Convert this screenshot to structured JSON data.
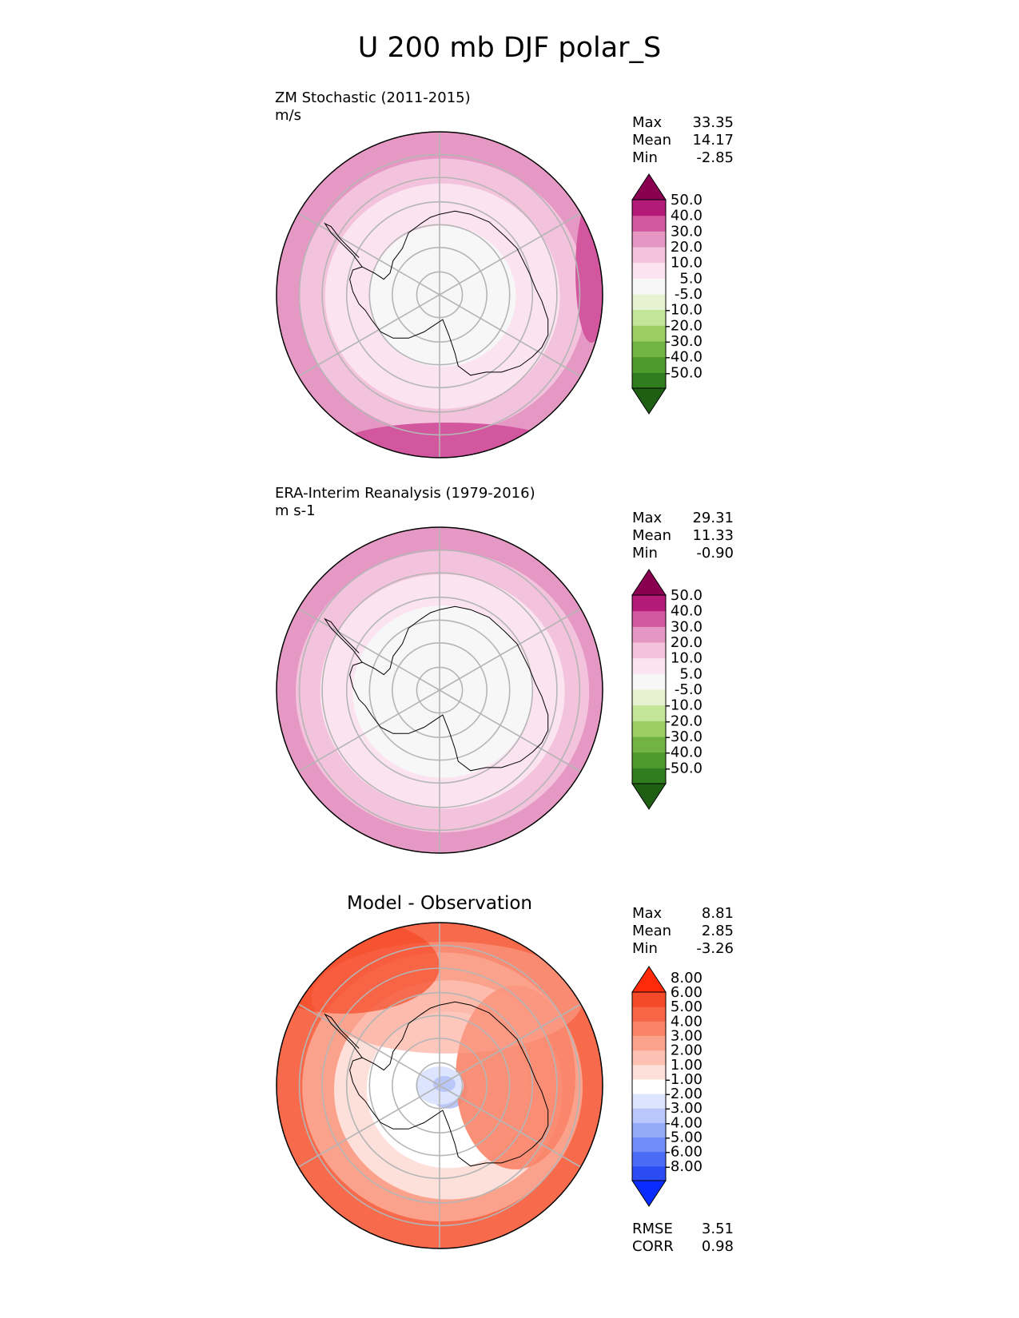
{
  "title": "U 200 mb DJF polar_S",
  "panels": [
    {
      "id": "test",
      "title_line1": "ZM Stochastic (2011-2015)",
      "title_line2": "m/s",
      "stats": [
        {
          "label": "Max",
          "value": "33.35"
        },
        {
          "label": "Mean",
          "value": "14.17"
        },
        {
          "label": "Min",
          "value": "-2.85"
        }
      ],
      "colorbar": {
        "colors": [
          "#1f5f14",
          "#2f7d1f",
          "#4f9a2d",
          "#72b444",
          "#9ccf63",
          "#c2e598",
          "#e6f3d2",
          "#f7f7f7",
          "#fbe4ef",
          "#f3c2dc",
          "#e696c3",
          "#d2579f",
          "#b41a78",
          "#8a0051"
        ],
        "labels": [
          "-50.0",
          "-40.0",
          "-30.0",
          "-20.0",
          "-10.0",
          "-5.0",
          "5.0",
          "10.0",
          "20.0",
          "30.0",
          "40.0",
          "50.0"
        ]
      },
      "rings": [
        {
          "rel": 1.0,
          "color": "#e698c4"
        },
        {
          "rel": 0.88,
          "color": "#f3c2dc"
        },
        {
          "rel": 0.72,
          "color": "#fbe4ef"
        },
        {
          "rel": 0.45,
          "color": "#f7f7f7"
        }
      ]
    },
    {
      "id": "ref",
      "title_line1": "ERA-Interim Reanalysis (1979-2016)",
      "title_line2": "m s-1",
      "stats": [
        {
          "label": "Max",
          "value": "29.31"
        },
        {
          "label": "Mean",
          "value": "11.33"
        },
        {
          "label": "Min",
          "value": "-0.90"
        }
      ],
      "colorbar": {
        "colors": [
          "#1f5f14",
          "#2f7d1f",
          "#4f9a2d",
          "#72b444",
          "#9ccf63",
          "#c2e598",
          "#e6f3d2",
          "#f7f7f7",
          "#fbe4ef",
          "#f3c2dc",
          "#e696c3",
          "#d2579f",
          "#b41a78",
          "#8a0051"
        ],
        "labels": [
          "-50.0",
          "-40.0",
          "-30.0",
          "-20.0",
          "-10.0",
          "-5.0",
          "5.0",
          "10.0",
          "20.0",
          "30.0",
          "40.0",
          "50.0"
        ]
      },
      "rings": [
        {
          "rel": 1.0,
          "color": "#e698c4"
        },
        {
          "rel": 0.9,
          "color": "#f3c2dc"
        },
        {
          "rel": 0.75,
          "color": "#fbe4ef"
        },
        {
          "rel": 0.55,
          "color": "#f7f7f7"
        }
      ]
    },
    {
      "id": "diff",
      "title_line1": "Model - Observation",
      "stats": [
        {
          "label": "Max",
          "value": "8.81"
        },
        {
          "label": "Mean",
          "value": "2.85"
        },
        {
          "label": "Min",
          "value": "-3.26"
        }
      ],
      "extra_stats": [
        {
          "label": "RMSE",
          "value": "3.51"
        },
        {
          "label": "CORR",
          "value": "0.98"
        }
      ],
      "colorbar": {
        "colors": [
          "#0a2cff",
          "#2b4cf5",
          "#4a6bf5",
          "#6f8cf7",
          "#94abf9",
          "#b9c7fb",
          "#dde4fd",
          "#ffffff",
          "#fde0da",
          "#fcc1b3",
          "#fba28d",
          "#f98468",
          "#f76546",
          "#f54a28",
          "#ff2a0a"
        ],
        "labels": [
          "-8.00",
          "-6.00",
          "-5.00",
          "-4.00",
          "-3.00",
          "-2.00",
          "-1.00",
          "1.00",
          "2.00",
          "3.00",
          "4.00",
          "5.00",
          "6.00",
          "8.00"
        ]
      },
      "rings": [
        {
          "rel": 1.0,
          "color": "#f76a4c"
        },
        {
          "rel": 0.86,
          "color": "#fba28d"
        },
        {
          "rel": 0.7,
          "color": "#fde0da"
        },
        {
          "rel": 0.5,
          "color": "#ffffff"
        },
        {
          "rel": 0.12,
          "color": "#b9c7fb"
        }
      ]
    }
  ]
}
